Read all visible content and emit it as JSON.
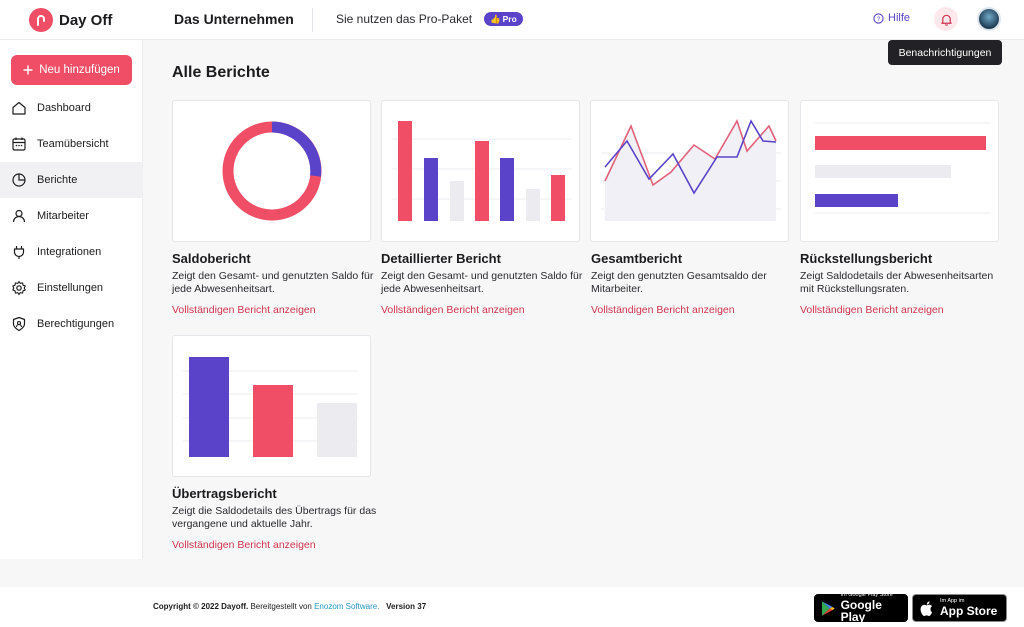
{
  "header": {
    "brand": "Day Off",
    "company": "Das Unternehmen",
    "plan_text": "Sie nutzen das Pro-Paket",
    "pro_badge": "Pro",
    "help": "Hilfe",
    "tooltip": "Benachrichtigungen",
    "icons": {
      "help": "help-circle-icon",
      "bell": "bell-icon"
    }
  },
  "sidebar": {
    "new_button": "Neu hinzufügen",
    "items": [
      {
        "label": "Dashboard",
        "icon": "home-icon"
      },
      {
        "label": "Teamübersicht",
        "icon": "calendar-icon"
      },
      {
        "label": "Berichte",
        "icon": "pie-chart-icon",
        "active": true
      },
      {
        "label": "Mitarbeiter",
        "icon": "user-icon"
      },
      {
        "label": "Integrationen",
        "icon": "plug-icon"
      },
      {
        "label": "Einstellungen",
        "icon": "gear-icon"
      },
      {
        "label": "Berechtigungen",
        "icon": "shield-icon"
      }
    ]
  },
  "main": {
    "title": "Alle Berichte",
    "reports": [
      {
        "title": "Saldobericht",
        "desc": "Zeigt den Gesamt- und genutzten Saldo für jede Abwesenheitsart.",
        "link": "Vollständigen Bericht anzeigen"
      },
      {
        "title": "Detaillierter Bericht",
        "desc": "Zeigt den Gesamt- und genutzten Saldo für jede Abwesenheitsart.",
        "link": "Vollständigen Bericht anzeigen"
      },
      {
        "title": "Gesamtbericht",
        "desc": "Zeigt den genutzten Gesamtsaldo der Mitarbeiter.",
        "link": "Vollständigen Bericht anzeigen"
      },
      {
        "title": "Rückstellungsbericht",
        "desc": "Zeigt Saldodetails der Abwesenheitsarten mit Rückstellungsraten.",
        "link": "Vollständigen Bericht anzeigen"
      },
      {
        "title": "Übertragsbericht",
        "desc": "Zeigt die Saldodetails des Übertrags für das vergangene und aktuelle Jahr.",
        "link": "Vollständigen Bericht anzeigen"
      }
    ]
  },
  "footer": {
    "copyright_prefix": "Copyright © 2022 Dayoff. ",
    "powered": "Bereitgestellt von",
    "company_link": "Enozom Software.",
    "version": "Version 37",
    "google_small": "Im Google Play Store",
    "google_big": "Google Play",
    "apple_small": "Im App im",
    "apple_big": "App Store"
  },
  "colors": {
    "accent": "#f04e67",
    "purple": "#5b43c9",
    "link": "#d1344f"
  }
}
